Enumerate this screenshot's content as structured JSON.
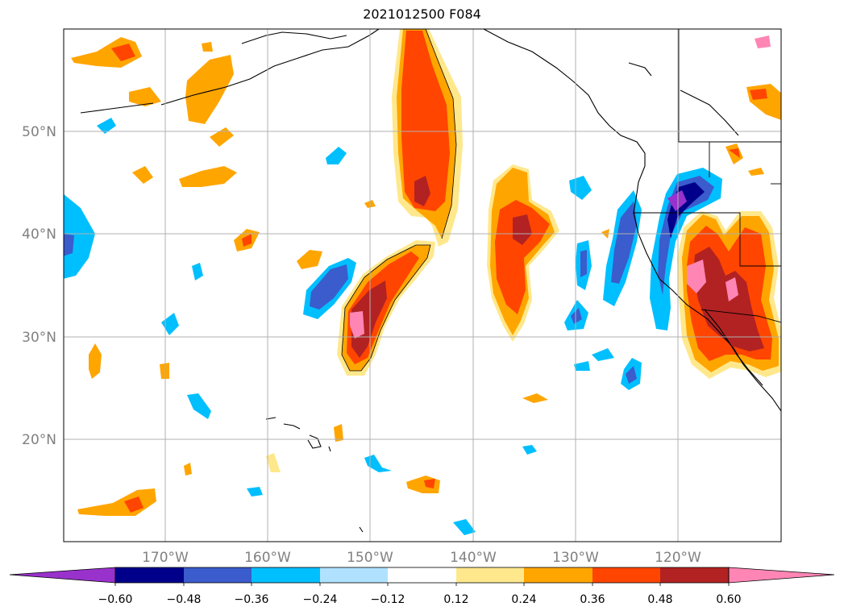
{
  "title": "2021012500 F084",
  "lat_labels": [
    "50°N",
    "40°N",
    "30°N",
    "20°N"
  ],
  "lon_labels": [
    "170°W",
    "160°W",
    "150°W",
    "140°W",
    "130°W",
    "120°W"
  ],
  "colorbar": {
    "colors": [
      "#9932cc",
      "#00008b",
      "#3a5ccc",
      "#00bfff",
      "#b0e2ff",
      "#ffffff",
      "#ffe88c",
      "#ffa500",
      "#ff4500",
      "#b22222",
      "#ff86b4"
    ],
    "tick_labels": [
      "−0.60",
      "−0.48",
      "−0.36",
      "−0.24",
      "−0.12",
      "0.12",
      "0.24",
      "0.36",
      "0.48",
      "0.60"
    ],
    "levels": [
      -0.6,
      -0.48,
      -0.36,
      -0.24,
      -0.12,
      0.12,
      0.24,
      0.36,
      0.48,
      0.6
    ],
    "extend": "both"
  },
  "map": {
    "lon_range": [
      -180,
      -110
    ],
    "lat_range": [
      10,
      60
    ],
    "gridlines": true,
    "lon_ticks": [
      -170,
      -160,
      -150,
      -140,
      -130,
      -120
    ],
    "lat_ticks": [
      50,
      40,
      30,
      20
    ]
  }
}
